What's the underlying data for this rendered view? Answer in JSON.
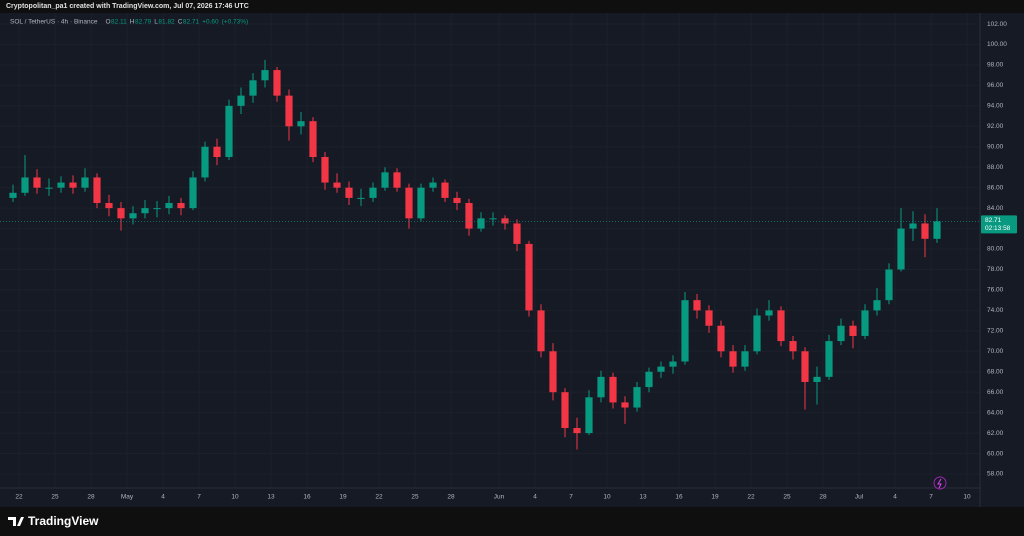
{
  "header": {
    "caption": "Cryptopolitan_pa1 created with TradingView.com, Jul 07, 2026 17:46 UTC"
  },
  "footer": {
    "brand": "TradingView"
  },
  "chart_data": {
    "type": "candlestick",
    "symbol": "SOL / TetherUS · 4h · Binance",
    "legend": {
      "open_label": "O",
      "open": 82.11,
      "high_label": "H",
      "high": 82.79,
      "low_label": "L",
      "low": 81.82,
      "close_label": "C",
      "close": 82.71,
      "change": "+0.60",
      "change_pct": "(+0.73%)"
    },
    "countdown": "02:13:58",
    "up_color": "#089981",
    "down_color": "#f23645",
    "grid": true,
    "candles": {
      "x": [
        "2026-04-21",
        "2026-04-22",
        "2026-04-23",
        "2026-04-24",
        "2026-04-25",
        "2026-04-26",
        "2026-04-27",
        "2026-04-28",
        "2026-04-29",
        "2026-04-30",
        "2026-05-01",
        "2026-05-02",
        "2026-05-03",
        "2026-05-04",
        "2026-05-05",
        "2026-05-06",
        "2026-05-07",
        "2026-05-08",
        "2026-05-09",
        "2026-05-10",
        "2026-05-11",
        "2026-05-12",
        "2026-05-13",
        "2026-05-14",
        "2026-05-15",
        "2026-05-16",
        "2026-05-17",
        "2026-05-18",
        "2026-05-19",
        "2026-05-20",
        "2026-05-21",
        "2026-05-22",
        "2026-05-23",
        "2026-05-24",
        "2026-05-25",
        "2026-05-26",
        "2026-05-27",
        "2026-05-28",
        "2026-05-29",
        "2026-05-30",
        "2026-05-31",
        "2026-06-01",
        "2026-06-02",
        "2026-06-03",
        "2026-06-04",
        "2026-06-05",
        "2026-06-06",
        "2026-06-07",
        "2026-06-08",
        "2026-06-09",
        "2026-06-10",
        "2026-06-11",
        "2026-06-12",
        "2026-06-13",
        "2026-06-14",
        "2026-06-15",
        "2026-06-16",
        "2026-06-17",
        "2026-06-18",
        "2026-06-19",
        "2026-06-20",
        "2026-06-21",
        "2026-06-22",
        "2026-06-23",
        "2026-06-24",
        "2026-06-25",
        "2026-06-26",
        "2026-06-27",
        "2026-06-28",
        "2026-06-29",
        "2026-06-30",
        "2026-07-01",
        "2026-07-02",
        "2026-07-03",
        "2026-07-04",
        "2026-07-05",
        "2026-07-06",
        "2026-07-07"
      ],
      "open": [
        85,
        85.5,
        87,
        86,
        86,
        86.5,
        86,
        87,
        84.5,
        84,
        83,
        83.5,
        84,
        84,
        84.5,
        84,
        87,
        90,
        89,
        94,
        95,
        96.5,
        97.5,
        95,
        92,
        92.5,
        89,
        86.5,
        86,
        85,
        85,
        86,
        87.5,
        86,
        83,
        86,
        86.5,
        85,
        84.5,
        82,
        83,
        83,
        82.5,
        80.5,
        74,
        70,
        66,
        62.5,
        62,
        65.5,
        67.5,
        65,
        64.5,
        66.5,
        68,
        68.5,
        69,
        75,
        74,
        72.5,
        70,
        68.5,
        70,
        73.5,
        74,
        71,
        70,
        67,
        67.5,
        71,
        72.5,
        71.5,
        74,
        75,
        78,
        82,
        82.5,
        81
      ],
      "high": [
        86.3,
        89.2,
        87.8,
        86.9,
        87.1,
        87.2,
        87.9,
        87.4,
        85.3,
        84.6,
        84.2,
        84.8,
        84.7,
        85.2,
        85,
        87.6,
        90.5,
        90.8,
        94.6,
        95.8,
        97.2,
        98.5,
        97.8,
        95.6,
        93.4,
        92.9,
        89.5,
        87.4,
        86.6,
        85.9,
        86.5,
        88,
        87.9,
        86.4,
        86.4,
        87,
        86.8,
        85.6,
        84.9,
        83.6,
        83.6,
        83.3,
        82.9,
        80.8,
        74.6,
        70.8,
        66.4,
        63.5,
        66.2,
        68.1,
        67.9,
        65.6,
        67,
        68.4,
        69,
        69.6,
        75.8,
        75.6,
        74.5,
        73,
        70.6,
        70.6,
        74.2,
        75,
        74.4,
        71.5,
        70.4,
        68.5,
        71.6,
        73.2,
        73,
        74.6,
        76.2,
        78.6,
        84,
        83.7,
        83.4,
        84
      ],
      "low": [
        84.6,
        85.2,
        85.4,
        85.2,
        85.5,
        85.4,
        85.6,
        84,
        83.2,
        81.8,
        82.4,
        83,
        83.1,
        83.4,
        83.3,
        83.8,
        86.6,
        88.2,
        88.7,
        93.2,
        94.3,
        95.8,
        94.4,
        90.6,
        91.2,
        88.5,
        85.8,
        85.5,
        84.3,
        84.2,
        84.6,
        85.7,
        85.6,
        82,
        82.7,
        85.6,
        84.6,
        83.8,
        81.3,
        81.7,
        82.3,
        81.9,
        79.8,
        73.4,
        69.4,
        65.2,
        61.6,
        60.4,
        61.8,
        65,
        64.4,
        62.9,
        64.1,
        66,
        67.4,
        67.8,
        68.7,
        73.2,
        71.8,
        69.4,
        67.9,
        68.1,
        69.7,
        73,
        70.5,
        69.2,
        64.3,
        64.8,
        67.2,
        70.6,
        70.3,
        71.2,
        73.5,
        74.6,
        77.8,
        80.8,
        79.2,
        80.6
      ],
      "close": [
        85.5,
        87,
        86,
        86,
        86.5,
        86,
        87,
        84.5,
        84,
        83,
        83.5,
        84,
        84,
        84.5,
        84,
        87,
        90,
        89,
        94,
        95,
        96.5,
        97.5,
        95,
        92,
        92.5,
        89,
        86.5,
        86,
        85,
        85,
        86,
        87.5,
        86,
        83,
        86,
        86.5,
        85,
        84.5,
        82,
        83,
        83,
        82.5,
        80.5,
        74,
        70,
        66,
        62.5,
        62,
        65.5,
        67.5,
        65,
        64.5,
        66.5,
        68,
        68.5,
        69,
        75,
        74,
        72.5,
        70,
        68.5,
        70,
        73.5,
        74,
        71,
        70,
        67,
        67.5,
        71,
        72.5,
        71.5,
        74,
        75,
        78,
        82,
        82.5,
        81,
        82.71
      ]
    },
    "xlim": [
      "2026-04-21",
      "2026-07-12"
    ],
    "xticks": [
      {
        "value": "2026-04-22",
        "label": "22"
      },
      {
        "value": "2026-04-25",
        "label": "25"
      },
      {
        "value": "2026-04-28",
        "label": "28"
      },
      {
        "value": "2026-05-01",
        "label": "May"
      },
      {
        "value": "2026-05-04",
        "label": "4"
      },
      {
        "value": "2026-05-07",
        "label": "7"
      },
      {
        "value": "2026-05-10",
        "label": "10"
      },
      {
        "value": "2026-05-13",
        "label": "13"
      },
      {
        "value": "2026-05-16",
        "label": "16"
      },
      {
        "value": "2026-05-19",
        "label": "19"
      },
      {
        "value": "2026-05-22",
        "label": "22"
      },
      {
        "value": "2026-05-25",
        "label": "25"
      },
      {
        "value": "2026-05-28",
        "label": "28"
      },
      {
        "value": "2026-06-01",
        "label": "Jun"
      },
      {
        "value": "2026-06-04",
        "label": "4"
      },
      {
        "value": "2026-06-07",
        "label": "7"
      },
      {
        "value": "2026-06-10",
        "label": "10"
      },
      {
        "value": "2026-06-13",
        "label": "13"
      },
      {
        "value": "2026-06-16",
        "label": "16"
      },
      {
        "value": "2026-06-19",
        "label": "19"
      },
      {
        "value": "2026-06-22",
        "label": "22"
      },
      {
        "value": "2026-06-25",
        "label": "25"
      },
      {
        "value": "2026-06-28",
        "label": "28"
      },
      {
        "value": "2026-07-01",
        "label": "Jul"
      },
      {
        "value": "2026-07-04",
        "label": "4"
      },
      {
        "value": "2026-07-07",
        "label": "7"
      },
      {
        "value": "2026-07-10",
        "label": "10"
      }
    ],
    "ylim": [
      56.73,
      103.08
    ],
    "yticks": [
      {
        "value": 58,
        "label": "58.00"
      },
      {
        "value": 60,
        "label": "60.00"
      },
      {
        "value": 62,
        "label": "62.00"
      },
      {
        "value": 64,
        "label": "64.00"
      },
      {
        "value": 66,
        "label": "66.00"
      },
      {
        "value": 68,
        "label": "68.00"
      },
      {
        "value": 70,
        "label": "70.00"
      },
      {
        "value": 72,
        "label": "72.00"
      },
      {
        "value": 74,
        "label": "74.00"
      },
      {
        "value": 76,
        "label": "76.00"
      },
      {
        "value": 78,
        "label": "78.00"
      },
      {
        "value": 80,
        "label": "80.00"
      },
      {
        "value": 82,
        "label": "82.00"
      },
      {
        "value": 84,
        "label": "84.00"
      },
      {
        "value": 86,
        "label": "86.00"
      },
      {
        "value": 88,
        "label": "88.00"
      },
      {
        "value": 90,
        "label": "90.00"
      },
      {
        "value": 92,
        "label": "92.00"
      },
      {
        "value": 94,
        "label": "94.00"
      },
      {
        "value": 96,
        "label": "96.00"
      },
      {
        "value": 98,
        "label": "98.00"
      },
      {
        "value": 100,
        "label": "100.00"
      },
      {
        "value": 102,
        "label": "102.00"
      }
    ]
  }
}
